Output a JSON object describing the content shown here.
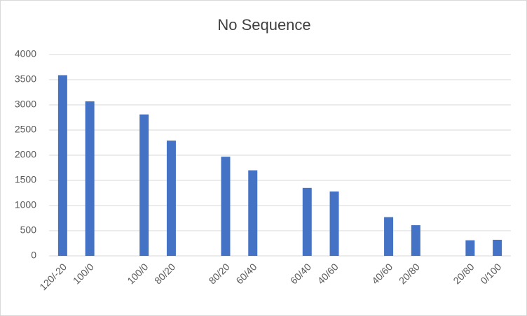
{
  "chart_data": {
    "type": "bar",
    "title": "No Sequence",
    "categories": [
      "120/-20",
      "100/0",
      null,
      "100/0",
      "80/20",
      null,
      "80/20",
      "60/40",
      null,
      "60/40",
      "40/60",
      null,
      "40/60",
      "20/80",
      null,
      "20/80",
      "0/100"
    ],
    "values": [
      3590,
      3070,
      null,
      2810,
      2290,
      null,
      1970,
      1700,
      null,
      1350,
      1280,
      null,
      770,
      610,
      null,
      310,
      320
    ],
    "color": "#4472c4",
    "ylim": [
      0,
      4000
    ],
    "yticks": [
      0,
      500,
      1000,
      1500,
      2000,
      2500,
      3000,
      3500,
      4000
    ],
    "grid": true
  }
}
